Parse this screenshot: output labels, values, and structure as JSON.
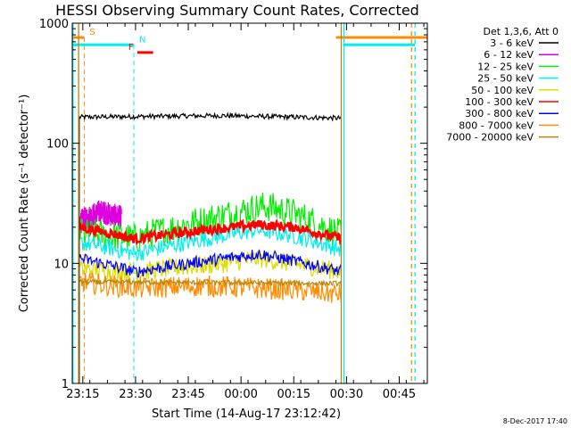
{
  "chart_data": {
    "type": "line",
    "title": "HESSI Observing Summary Count Rates, Corrected",
    "xlabel": "Start Time (14-Aug-17 23:12:42)",
    "ylabel": "Corrected Count Rate (s⁻¹ detector⁻¹)",
    "yscale": "log",
    "xlim_minutes": [
      -3,
      98
    ],
    "ylim": [
      1,
      1000
    ],
    "grid": false,
    "legend_position": "right",
    "x_ticks": [
      {
        "label": "23:15",
        "minute": 0
      },
      {
        "label": "23:30",
        "minute": 15
      },
      {
        "label": "23:45",
        "minute": 30
      },
      {
        "label": "00:00",
        "minute": 45
      },
      {
        "label": "00:15",
        "minute": 60
      },
      {
        "label": "00:30",
        "minute": 75
      },
      {
        "label": "00:45",
        "minute": 90
      }
    ],
    "y_ticks": [
      {
        "label": "1",
        "value": 1
      },
      {
        "label": "10",
        "value": 10
      },
      {
        "label": "100",
        "value": 100
      },
      {
        "label": "1000",
        "value": 1000
      }
    ],
    "legend_header": "Det 1,3,6, Att 0",
    "series": [
      {
        "name": "3 - 6 keV",
        "color": "#000000",
        "range": [
          -1,
          73.5
        ],
        "level_pts": [
          [
            -1,
            165
          ],
          [
            40,
            170
          ],
          [
            73.5,
            162
          ]
        ],
        "noise": 0.02
      },
      {
        "name": "6 - 12 keV",
        "color": "#dd00dd",
        "range": [
          -1,
          11
        ],
        "level_pts": [
          [
            -1,
            22
          ],
          [
            5,
            27
          ],
          [
            11,
            24
          ]
        ],
        "noise": 0.1
      },
      {
        "name": "12 - 25 keV",
        "color": "#00ee00",
        "range": [
          -1,
          73.5
        ],
        "level_pts": [
          [
            -1,
            18
          ],
          [
            15,
            16
          ],
          [
            35,
            23
          ],
          [
            52,
            30
          ],
          [
            60,
            26
          ],
          [
            73.5,
            17
          ]
        ],
        "noise": 0.13
      },
      {
        "name": "25 - 50 keV",
        "color": "#00eeee",
        "range": [
          -1,
          73.5
        ],
        "level_pts": [
          [
            -1,
            15
          ],
          [
            15,
            12
          ],
          [
            35,
            16
          ],
          [
            50,
            19
          ],
          [
            60,
            17
          ],
          [
            73.5,
            13
          ]
        ],
        "noise": 0.07
      },
      {
        "name": "50 - 100 keV",
        "color": "#dddd00",
        "range": [
          -1,
          73.5
        ],
        "level_pts": [
          [
            -1,
            9
          ],
          [
            15,
            8.5
          ],
          [
            40,
            10
          ],
          [
            50,
            11
          ],
          [
            73.5,
            8.5
          ]
        ],
        "noise": 0.08
      },
      {
        "name": "100 - 300 keV",
        "color": "#ff0000",
        "range": [
          -1,
          73.5
        ],
        "level_pts": [
          [
            -1,
            20
          ],
          [
            15,
            16
          ],
          [
            35,
            19
          ],
          [
            50,
            21
          ],
          [
            60,
            20
          ],
          [
            73.5,
            16
          ]
        ],
        "noise": 0.04
      },
      {
        "name": "300 - 800 keV",
        "color": "#0000ff",
        "range": [
          -1,
          73.5
        ],
        "level_pts": [
          [
            -1,
            11
          ],
          [
            15,
            8.5
          ],
          [
            40,
            11
          ],
          [
            50,
            12
          ],
          [
            60,
            10.5
          ],
          [
            73.5,
            8.5
          ]
        ],
        "noise": 0.05
      },
      {
        "name": "800 - 7000 keV",
        "color": "#ff8c00",
        "range": [
          -1,
          73.5
        ],
        "level_pts": [
          [
            -1,
            7
          ],
          [
            15,
            6.2
          ],
          [
            35,
            6.5
          ],
          [
            60,
            6
          ],
          [
            73.5,
            5.5
          ]
        ],
        "noise": 0.09
      },
      {
        "name": "7000 - 20000 keV",
        "color": "#b8860b",
        "range": [
          -1,
          73.5
        ],
        "level_pts": [
          [
            -1,
            7
          ],
          [
            73.5,
            6.8
          ]
        ],
        "noise": 0.02
      }
    ],
    "annotations": [
      {
        "label": "S",
        "color": "#ff8c00",
        "segments": [
          [
            -3,
            0.4
          ],
          [
            72,
            98
          ]
        ],
        "y_value": 760,
        "vline_minute": 0.4,
        "vline_style": "dashed"
      },
      {
        "label": "N",
        "color": "#00eeee",
        "segments": [
          [
            -3,
            14.5
          ],
          [
            74,
            94.5
          ]
        ],
        "y_value": 660,
        "vline_minute": 14.5,
        "vline_style": "dashed"
      },
      {
        "label": "F",
        "color": "#ff0000",
        "segments": [
          [
            15.5,
            20
          ]
        ],
        "y_value": 570
      }
    ],
    "vertical_markers": [
      {
        "minute": -1.2,
        "color": "#b8860b",
        "style": "solid"
      },
      {
        "minute": 73.5,
        "color": "#b8860b",
        "style": "solid"
      },
      {
        "minute": -2.8,
        "color": "#00eeee",
        "style": "solid"
      },
      {
        "minute": 74.3,
        "color": "#00eeee",
        "style": "solid"
      },
      {
        "minute": 94.5,
        "color": "#00eeee",
        "style": "dashed"
      },
      {
        "minute": 93.5,
        "color": "#ff8c00",
        "style": "dashed"
      }
    ]
  },
  "footer": {
    "timestamp": "8-Dec-2017 17:40"
  }
}
